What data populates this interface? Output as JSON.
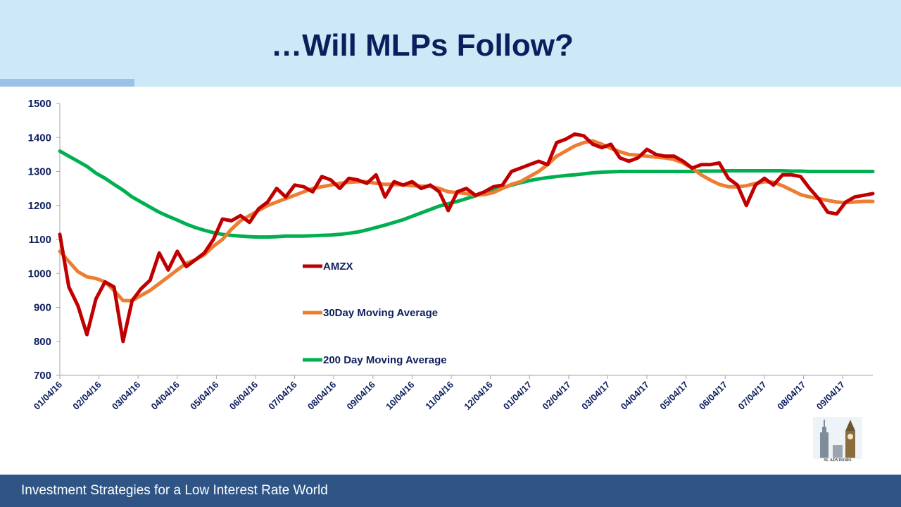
{
  "slide": {
    "title": "…Will MLPs Follow?",
    "footer": "Investment Strategies for a Low Interest Rate World",
    "logo_text": "SL ADVISORS"
  },
  "colors": {
    "header_bg": "#cde9f8",
    "title": "#0d1e5c",
    "footer_bg": "#2e5585",
    "amzx": "#c00000",
    "ma30": "#ed7d31",
    "ma200": "#00b050"
  },
  "chart_data": {
    "type": "line",
    "title": "",
    "xlabel": "",
    "ylabel": "",
    "ylim": [
      700,
      1500
    ],
    "yticks": [
      700,
      800,
      900,
      1000,
      1100,
      1200,
      1300,
      1400,
      1500
    ],
    "grid": false,
    "legend_position": "center-left",
    "x_tick_labels": [
      "01/04/16",
      "02/04/16",
      "03/04/16",
      "04/04/16",
      "05/04/16",
      "06/04/16",
      "07/04/16",
      "08/04/16",
      "09/04/16",
      "10/04/16",
      "11/04/16",
      "12/04/16",
      "01/04/17",
      "02/04/17",
      "03/04/17",
      "04/04/17",
      "05/04/17",
      "06/04/17",
      "07/04/17",
      "08/04/17",
      "09/04/17"
    ],
    "x": [
      "01/04/16",
      "01/11/16",
      "01/18/16",
      "01/25/16",
      "02/01/16",
      "02/08/16",
      "02/15/16",
      "02/22/16",
      "02/29/16",
      "03/07/16",
      "03/14/16",
      "03/21/16",
      "03/28/16",
      "04/04/16",
      "04/11/16",
      "04/18/16",
      "04/25/16",
      "05/02/16",
      "05/09/16",
      "05/16/16",
      "05/23/16",
      "05/30/16",
      "06/06/16",
      "06/13/16",
      "06/20/16",
      "06/27/16",
      "07/04/16",
      "07/11/16",
      "07/18/16",
      "07/25/16",
      "08/01/16",
      "08/08/16",
      "08/15/16",
      "08/22/16",
      "08/29/16",
      "09/05/16",
      "09/12/16",
      "09/19/16",
      "09/26/16",
      "10/03/16",
      "10/10/16",
      "10/17/16",
      "10/24/16",
      "10/31/16",
      "11/07/16",
      "11/14/16",
      "11/21/16",
      "11/28/16",
      "12/05/16",
      "12/12/16",
      "12/19/16",
      "12/26/16",
      "01/02/17",
      "01/09/17",
      "01/16/17",
      "01/23/17",
      "01/30/17",
      "02/06/17",
      "02/13/17",
      "02/20/17",
      "02/27/17",
      "03/06/17",
      "03/13/17",
      "03/20/17",
      "03/27/17",
      "04/03/17",
      "04/10/17",
      "04/17/17",
      "04/24/17",
      "05/01/17",
      "05/08/17",
      "05/15/17",
      "05/22/17",
      "05/29/17",
      "06/05/17",
      "06/12/17",
      "06/19/17",
      "06/26/17",
      "07/03/17",
      "07/10/17",
      "07/17/17",
      "07/24/17",
      "07/31/17",
      "08/07/17",
      "08/14/17",
      "08/21/17",
      "08/28/17",
      "09/04/17",
      "09/11/17",
      "09/18/17",
      "09/25/17"
    ],
    "series": [
      {
        "name": "AMZX",
        "color": "#c00000",
        "values": [
          1115,
          960,
          905,
          820,
          925,
          975,
          960,
          800,
          920,
          955,
          980,
          1060,
          1010,
          1065,
          1020,
          1040,
          1060,
          1100,
          1160,
          1155,
          1170,
          1150,
          1190,
          1210,
          1250,
          1225,
          1260,
          1255,
          1240,
          1285,
          1275,
          1250,
          1280,
          1275,
          1265,
          1290,
          1225,
          1270,
          1260,
          1270,
          1250,
          1260,
          1240,
          1185,
          1240,
          1250,
          1230,
          1240,
          1255,
          1260,
          1300,
          1310,
          1320,
          1330,
          1320,
          1385,
          1395,
          1410,
          1405,
          1380,
          1370,
          1380,
          1340,
          1330,
          1340,
          1365,
          1350,
          1345,
          1345,
          1330,
          1310,
          1320,
          1320,
          1325,
          1280,
          1260,
          1200,
          1260,
          1280,
          1260,
          1290,
          1290,
          1285,
          1250,
          1220,
          1180,
          1175,
          1210,
          1225,
          1230,
          1235
        ]
      },
      {
        "name": "30Day Moving Average",
        "color": "#ed7d31",
        "values": [
          1065,
          1035,
          1005,
          990,
          985,
          975,
          950,
          920,
          920,
          935,
          950,
          970,
          990,
          1010,
          1030,
          1040,
          1055,
          1080,
          1100,
          1130,
          1155,
          1170,
          1185,
          1200,
          1210,
          1220,
          1230,
          1240,
          1250,
          1255,
          1260,
          1265,
          1268,
          1270,
          1270,
          1265,
          1262,
          1262,
          1260,
          1258,
          1257,
          1256,
          1250,
          1240,
          1238,
          1235,
          1230,
          1232,
          1238,
          1250,
          1262,
          1270,
          1285,
          1300,
          1320,
          1345,
          1360,
          1375,
          1385,
          1390,
          1380,
          1368,
          1358,
          1350,
          1348,
          1345,
          1342,
          1340,
          1335,
          1325,
          1310,
          1290,
          1275,
          1262,
          1255,
          1255,
          1258,
          1265,
          1270,
          1268,
          1258,
          1245,
          1232,
          1225,
          1220,
          1215,
          1210,
          1208,
          1210,
          1212,
          1212
        ]
      },
      {
        "name": "200 Day Moving Average",
        "color": "#00b050",
        "values": [
          1360,
          1345,
          1330,
          1315,
          1295,
          1280,
          1262,
          1245,
          1225,
          1210,
          1195,
          1180,
          1168,
          1157,
          1145,
          1135,
          1127,
          1120,
          1115,
          1112,
          1110,
          1108,
          1107,
          1107,
          1108,
          1110,
          1110,
          1110,
          1111,
          1112,
          1113,
          1115,
          1118,
          1122,
          1128,
          1135,
          1142,
          1150,
          1158,
          1168,
          1178,
          1188,
          1198,
          1205,
          1212,
          1220,
          1228,
          1236,
          1244,
          1252,
          1260,
          1267,
          1273,
          1278,
          1282,
          1285,
          1288,
          1290,
          1293,
          1296,
          1298,
          1299,
          1300,
          1300,
          1300,
          1300,
          1300,
          1300,
          1300,
          1300,
          1300,
          1301,
          1301,
          1301,
          1302,
          1302,
          1302,
          1302,
          1302,
          1302,
          1302,
          1301,
          1301,
          1300,
          1300,
          1300,
          1300,
          1300,
          1300,
          1300,
          1300
        ]
      }
    ]
  }
}
